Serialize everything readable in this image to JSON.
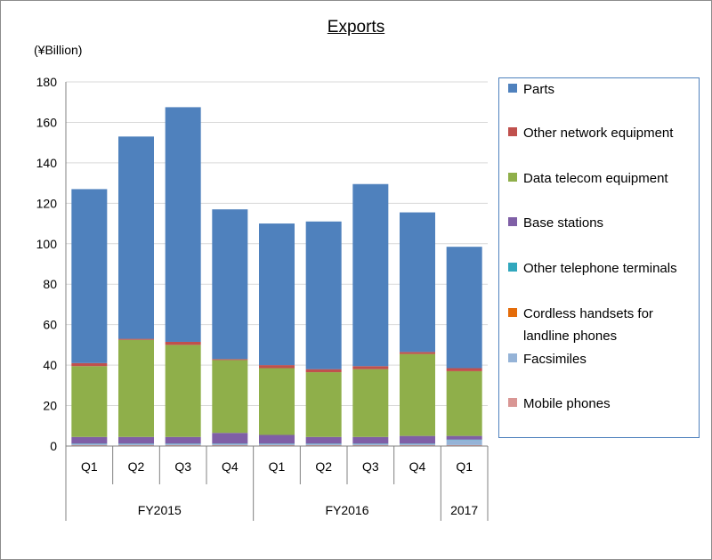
{
  "chart_data": {
    "type": "bar",
    "stacked": true,
    "title": "Exports",
    "unit_label": "(¥Billion)",
    "categories": [
      "Q1",
      "Q2",
      "Q3",
      "Q4",
      "Q1",
      "Q2",
      "Q3",
      "Q4",
      "Q1"
    ],
    "groups": [
      {
        "label": "FY2015",
        "span": 4
      },
      {
        "label": "FY2016",
        "span": 4
      },
      {
        "label": "2017",
        "span": 1
      }
    ],
    "ylim": [
      0,
      180
    ],
    "yticks": [
      0,
      20,
      40,
      60,
      80,
      100,
      120,
      140,
      160,
      180
    ],
    "grid": true,
    "legend_position": "right",
    "series": [
      {
        "name": "Mobile phones",
        "color": "#d99694",
        "values": [
          0.5,
          0.5,
          0.5,
          0.5,
          0.5,
          0.5,
          0.5,
          0.5,
          0.5
        ]
      },
      {
        "name": "Facsimiles",
        "color": "#95b3d7",
        "values": [
          0.5,
          0.5,
          0.5,
          0.5,
          0.5,
          0.5,
          0.5,
          0.5,
          2.5
        ]
      },
      {
        "name": "Cordless handsets for landline phones",
        "color": "#e46c0a",
        "values": [
          0,
          0,
          0,
          0,
          0,
          0,
          0,
          0,
          0
        ]
      },
      {
        "name": "Other telephone terminals",
        "color": "#31a7bd",
        "values": [
          0.2,
          0.2,
          0.2,
          0.2,
          0.2,
          0.2,
          0.2,
          0.2,
          0.2
        ]
      },
      {
        "name": "Base stations",
        "color": "#7f5fa6",
        "values": [
          3.3,
          3.3,
          3.3,
          5.3,
          4.3,
          3.3,
          3.3,
          3.8,
          1.8
        ]
      },
      {
        "name": "Data telecom equipment",
        "color": "#8faf4a",
        "values": [
          35,
          48,
          45.5,
          36,
          33,
          32,
          33.5,
          40.5,
          32
        ]
      },
      {
        "name": "Other network equipment",
        "color": "#c0504d",
        "values": [
          1.5,
          0.5,
          1.5,
          0.5,
          1.5,
          1.5,
          1.5,
          1,
          1.5
        ]
      },
      {
        "name": "Parts",
        "color": "#4f81bd",
        "values": [
          86,
          100,
          116,
          74,
          70,
          73,
          90,
          69,
          60
        ]
      }
    ]
  },
  "legend_items": [
    {
      "name": "Parts",
      "color": "#4f81bd"
    },
    {
      "name": "Other network equipment",
      "color": "#c0504d"
    },
    {
      "name": "Data telecom equipment",
      "color": "#8faf4a"
    },
    {
      "name": "Base stations",
      "color": "#7f5fa6"
    },
    {
      "name": "Other telephone terminals",
      "color": "#31a7bd"
    },
    {
      "name": "Cordless handsets for landline phones",
      "color": "#e46c0a"
    },
    {
      "name": "Facsimiles",
      "color": "#95b3d7"
    },
    {
      "name": "Mobile phones",
      "color": "#d99694"
    }
  ]
}
